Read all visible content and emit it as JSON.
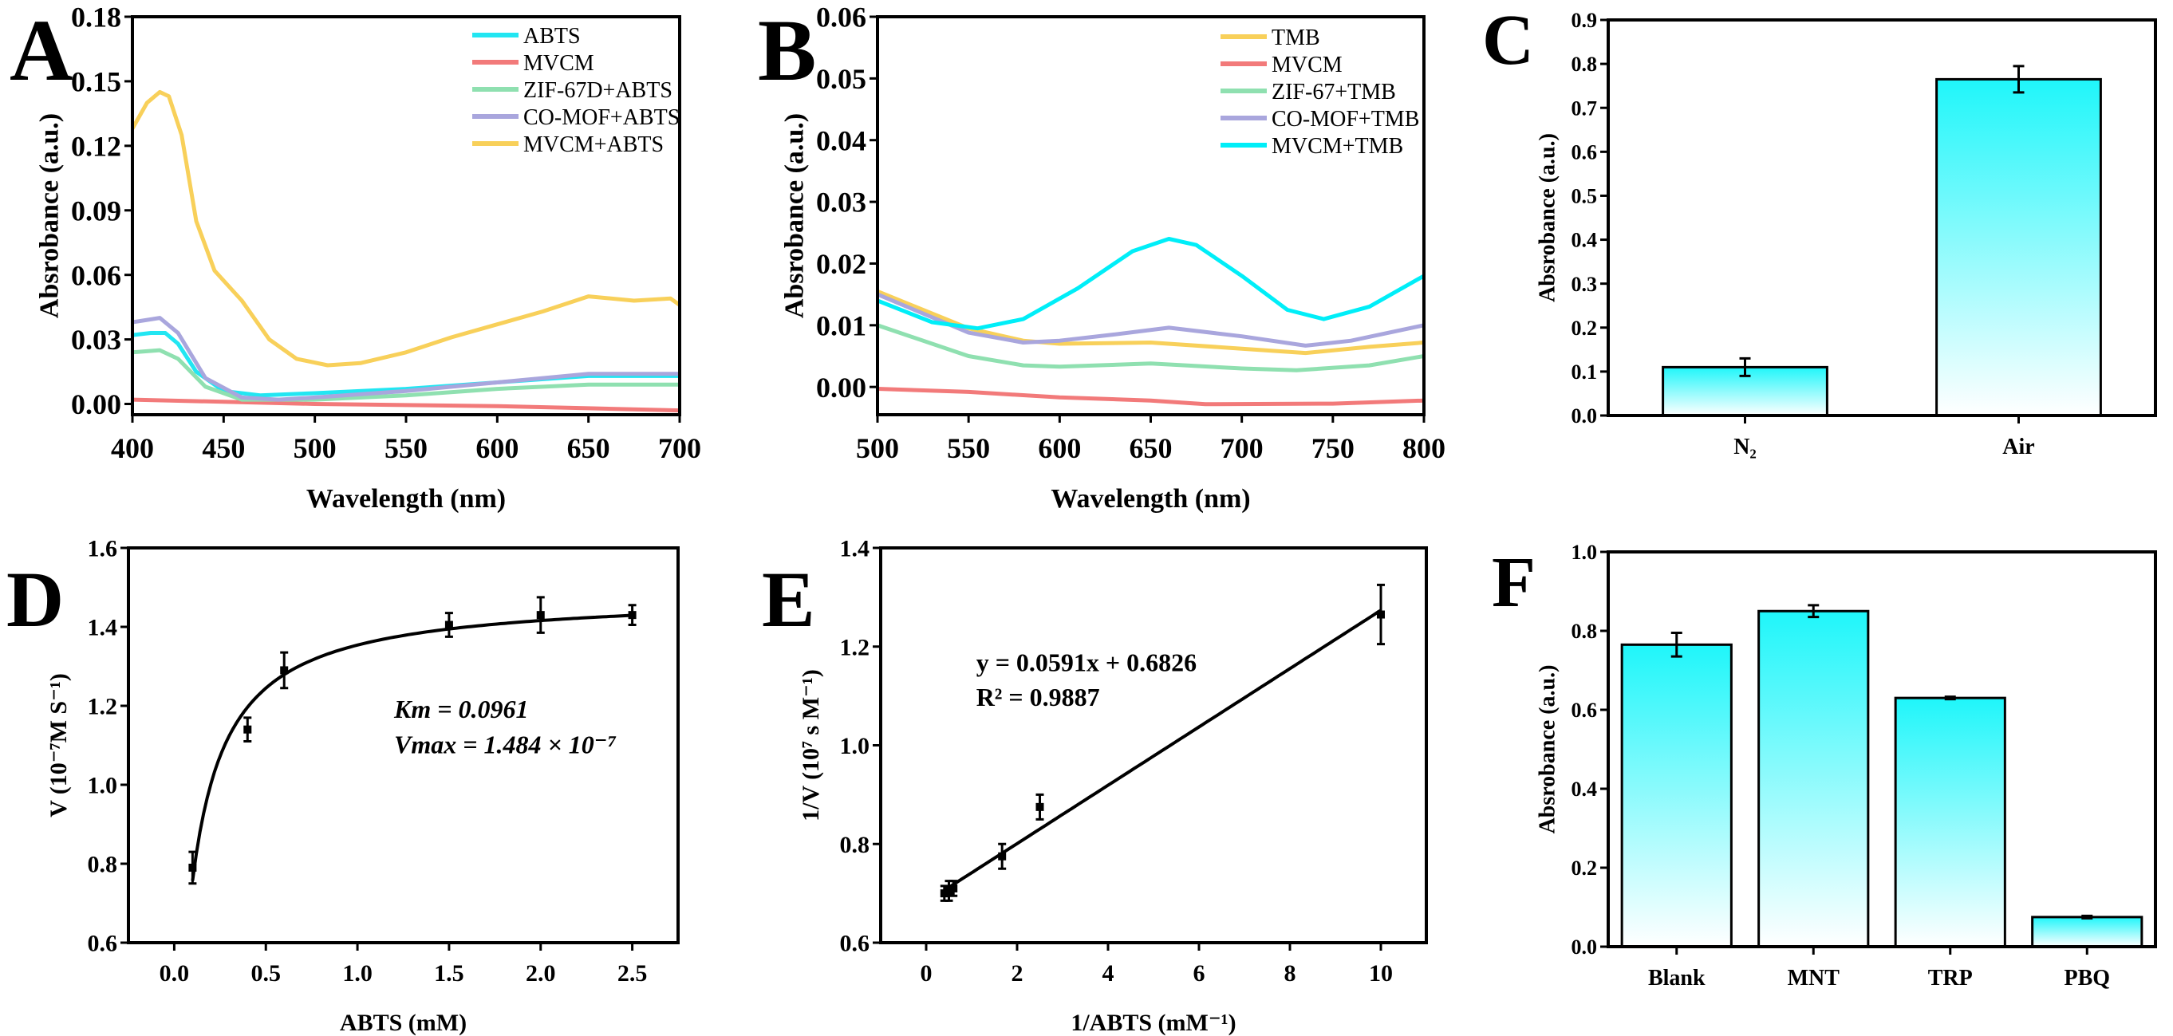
{
  "panel_letters": [
    "A",
    "B",
    "C",
    "D",
    "E",
    "F"
  ],
  "chart_data": [
    {
      "type": "line",
      "xlabel": "Wavelength (nm)",
      "ylabel": "Absrobance (a.u.)",
      "xlim": [
        400,
        700
      ],
      "ylim": [
        -0.005,
        0.18
      ],
      "xticks": [
        "400",
        "450",
        "500",
        "550",
        "600",
        "650",
        "700"
      ],
      "yticks": [
        "0.00",
        "0.03",
        "0.06",
        "0.09",
        "0.12",
        "0.15",
        "0.18"
      ],
      "legend_position": "top-right",
      "series": [
        {
          "name": "ABTS",
          "color": "#22e6f2",
          "x": [
            400,
            410,
            418,
            425,
            435,
            450,
            470,
            500,
            550,
            600,
            650,
            700
          ],
          "y": [
            0.032,
            0.033,
            0.033,
            0.028,
            0.015,
            0.006,
            0.004,
            0.005,
            0.007,
            0.01,
            0.013,
            0.013
          ]
        },
        {
          "name": "MVCM",
          "color": "#f27a7a",
          "x": [
            400,
            450,
            500,
            550,
            600,
            650,
            700
          ],
          "y": [
            0.002,
            0.001,
            0.0,
            -0.0005,
            -0.001,
            -0.002,
            -0.003
          ]
        },
        {
          "name": "ZIF-67D+ABTS",
          "color": "#8fe0b0",
          "x": [
            400,
            415,
            425,
            440,
            460,
            500,
            550,
            600,
            650,
            700
          ],
          "y": [
            0.024,
            0.025,
            0.021,
            0.008,
            0.002,
            0.002,
            0.004,
            0.007,
            0.009,
            0.009
          ]
        },
        {
          "name": "CO-MOF+ABTS",
          "color": "#a9a6dd",
          "x": [
            400,
            415,
            425,
            440,
            460,
            480,
            500,
            550,
            600,
            650,
            700
          ],
          "y": [
            0.038,
            0.04,
            0.033,
            0.012,
            0.003,
            0.002,
            0.003,
            0.006,
            0.01,
            0.014,
            0.014
          ]
        },
        {
          "name": "MVCM+ABTS",
          "color": "#f8d05a",
          "x": [
            400,
            408,
            415,
            420,
            427,
            435,
            445,
            460,
            475,
            490,
            507,
            525,
            550,
            575,
            600,
            625,
            650,
            675,
            695,
            700
          ],
          "y": [
            0.128,
            0.14,
            0.145,
            0.143,
            0.125,
            0.085,
            0.062,
            0.048,
            0.03,
            0.021,
            0.018,
            0.019,
            0.024,
            0.031,
            0.037,
            0.043,
            0.05,
            0.048,
            0.049,
            0.046
          ]
        }
      ]
    },
    {
      "type": "line",
      "xlabel": "Wavelength (nm)",
      "ylabel": "Absrobance (a.u.)",
      "xlim": [
        500,
        800
      ],
      "ylim": [
        -0.0045,
        0.06
      ],
      "xticks": [
        "500",
        "550",
        "600",
        "650",
        "700",
        "750",
        "800"
      ],
      "yticks": [
        "0.00",
        "0.01",
        "0.02",
        "0.03",
        "0.04",
        "0.05",
        "0.06"
      ],
      "legend_position": "top-right",
      "series": [
        {
          "name": "TMB",
          "color": "#f8d05a",
          "x": [
            500,
            550,
            580,
            600,
            650,
            700,
            735,
            770,
            800
          ],
          "y": [
            0.0155,
            0.0095,
            0.0075,
            0.007,
            0.0072,
            0.0062,
            0.0055,
            0.0065,
            0.0072
          ]
        },
        {
          "name": "MVCM",
          "color": "#f27a7a",
          "x": [
            500,
            550,
            600,
            650,
            680,
            750,
            800
          ],
          "y": [
            -0.0003,
            -0.0008,
            -0.0017,
            -0.0022,
            -0.0028,
            -0.0027,
            -0.0022
          ]
        },
        {
          "name": "ZIF-67+TMB",
          "color": "#8fe0b0",
          "x": [
            500,
            550,
            580,
            600,
            650,
            700,
            730,
            770,
            800
          ],
          "y": [
            0.01,
            0.005,
            0.0035,
            0.0033,
            0.0038,
            0.003,
            0.0027,
            0.0035,
            0.005
          ]
        },
        {
          "name": "CO-MOF+TMB",
          "color": "#a9a6dd",
          "x": [
            500,
            550,
            580,
            600,
            630,
            660,
            700,
            735,
            760,
            800
          ],
          "y": [
            0.015,
            0.0088,
            0.0072,
            0.0075,
            0.0085,
            0.0096,
            0.0082,
            0.0067,
            0.0075,
            0.01
          ]
        },
        {
          "name": "MVCM+TMB",
          "color": "#00eef8",
          "x": [
            500,
            530,
            555,
            580,
            610,
            640,
            660,
            675,
            700,
            725,
            745,
            770,
            800
          ],
          "y": [
            0.014,
            0.0105,
            0.0095,
            0.011,
            0.016,
            0.022,
            0.024,
            0.023,
            0.018,
            0.0125,
            0.011,
            0.013,
            0.018
          ]
        }
      ]
    },
    {
      "type": "bar",
      "xlabel": "",
      "ylabel": "Absrobance (a.u.)",
      "ylim": [
        0,
        0.9
      ],
      "yticks": [
        "0.0",
        "0.1",
        "0.2",
        "0.3",
        "0.4",
        "0.5",
        "0.6",
        "0.7",
        "0.8",
        "0.9"
      ],
      "categories": [
        "N₂",
        "Air"
      ],
      "values": [
        0.11,
        0.765
      ],
      "errors": [
        0.02,
        0.03
      ]
    },
    {
      "type": "scatter",
      "xlabel": "ABTS (mM)",
      "ylabel": "V (10⁻⁷M S⁻¹)",
      "xlim": [
        -0.25,
        2.75
      ],
      "ylim": [
        0.6,
        1.6
      ],
      "xticks": [
        "0.0",
        "0.5",
        "1.0",
        "1.5",
        "2.0",
        "2.5"
      ],
      "yticks": [
        "0.6",
        "0.8",
        "1.0",
        "1.2",
        "1.4",
        "1.6"
      ],
      "x": [
        0.1,
        0.4,
        0.6,
        1.5,
        2.0,
        2.5
      ],
      "y": [
        0.79,
        1.14,
        1.29,
        1.405,
        1.43,
        1.43
      ],
      "errors": [
        0.04,
        0.03,
        0.045,
        0.03,
        0.045,
        0.025
      ],
      "fit": {
        "model": "michaelis-menten",
        "Vmax": 1.484,
        "Km": 0.0961,
        "range": [
          0.1,
          2.5
        ]
      },
      "annotations": [
        "Km = 0.0961",
        "Vmax = 1.484 × 10⁻⁷"
      ]
    },
    {
      "type": "scatter",
      "xlabel": "1/ABTS (mM⁻¹)",
      "ylabel": "1/V (10⁷ s M⁻¹)",
      "xlim": [
        -1,
        11
      ],
      "ylim": [
        0.6,
        1.4
      ],
      "xticks": [
        "0",
        "2",
        "4",
        "6",
        "8",
        "10"
      ],
      "yticks": [
        "0.6",
        "0.8",
        "1.0",
        "1.2",
        "1.4"
      ],
      "x": [
        0.4,
        0.5,
        0.6,
        1.67,
        2.5,
        10
      ],
      "y": [
        0.7,
        0.705,
        0.71,
        0.775,
        0.875,
        1.265
      ],
      "errors": [
        0.015,
        0.02,
        0.015,
        0.025,
        0.025,
        0.06
      ],
      "fit": {
        "model": "linear",
        "slope": 0.0591,
        "intercept": 0.6826,
        "range": [
          0.4,
          10
        ]
      },
      "annotations": [
        "y = 0.0591x + 0.6826",
        "R² = 0.9887"
      ]
    },
    {
      "type": "bar",
      "xlabel": "",
      "ylabel": "Absrobance (a.u.)",
      "ylim": [
        0,
        1.0
      ],
      "yticks": [
        "0.0",
        "0.2",
        "0.4",
        "0.6",
        "0.8",
        "1.0"
      ],
      "categories": [
        "Blank",
        "MNT",
        "TRP",
        "PBQ"
      ],
      "values": [
        0.765,
        0.85,
        0.63,
        0.075
      ],
      "errors": [
        0.03,
        0.015,
        0.003,
        0.003
      ]
    }
  ]
}
